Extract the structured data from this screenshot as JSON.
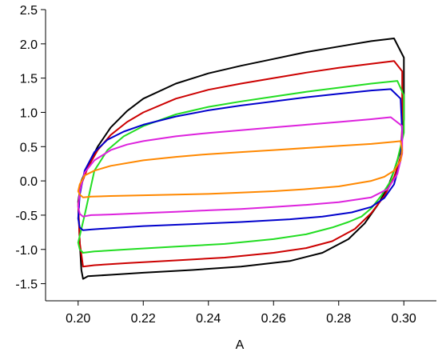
{
  "chart_data": {
    "type": "line",
    "title": "",
    "xlabel": "A",
    "ylabel": "",
    "xlim": [
      0.19,
      0.31
    ],
    "ylim": [
      -1.75,
      2.5
    ],
    "x_ticks": [
      0.2,
      0.22,
      0.24,
      0.26,
      0.28,
      0.3
    ],
    "y_ticks": [
      -1.5,
      -1.0,
      -0.5,
      0.0,
      0.5,
      1.0,
      1.5,
      2.0,
      2.5
    ],
    "x_tick_labels": [
      "0.20",
      "0.22",
      "0.24",
      "0.26",
      "0.28",
      "0.30"
    ],
    "y_tick_labels": [
      "-1.5",
      "-1.0",
      "-0.5",
      "0.0",
      "0.5",
      "1.0",
      "1.5",
      "2.0",
      "2.5"
    ],
    "grid": false,
    "legend": "none",
    "series": [
      {
        "color": "#000000",
        "x": [
          0.2,
          0.201,
          0.203,
          0.206,
          0.21,
          0.215,
          0.22,
          0.23,
          0.24,
          0.25,
          0.26,
          0.27,
          0.28,
          0.29,
          0.297,
          0.3,
          0.3,
          0.299,
          0.297,
          0.295,
          0.292,
          0.288,
          0.283,
          0.275,
          0.265,
          0.25,
          0.235,
          0.22,
          0.21,
          0.203,
          0.2015,
          0.201,
          0.2005,
          0.2
        ],
        "y": [
          -0.3,
          0.0,
          0.22,
          0.5,
          0.78,
          1.02,
          1.2,
          1.42,
          1.57,
          1.68,
          1.78,
          1.88,
          1.96,
          2.04,
          2.08,
          1.8,
          0.9,
          0.45,
          0.15,
          -0.1,
          -0.35,
          -0.62,
          -0.85,
          -1.05,
          -1.17,
          -1.25,
          -1.3,
          -1.34,
          -1.37,
          -1.39,
          -1.43,
          -1.3,
          -0.9,
          -0.3
        ]
      },
      {
        "color": "#cc0000",
        "x": [
          0.2,
          0.201,
          0.203,
          0.206,
          0.21,
          0.215,
          0.22,
          0.23,
          0.24,
          0.25,
          0.26,
          0.27,
          0.28,
          0.29,
          0.297,
          0.2995,
          0.2995,
          0.299,
          0.297,
          0.294,
          0.29,
          0.285,
          0.278,
          0.27,
          0.26,
          0.245,
          0.23,
          0.215,
          0.205,
          0.2015,
          0.2005,
          0.2
        ],
        "y": [
          -0.35,
          -0.05,
          0.2,
          0.45,
          0.67,
          0.86,
          1.0,
          1.2,
          1.33,
          1.42,
          1.5,
          1.58,
          1.65,
          1.71,
          1.75,
          1.6,
          0.8,
          0.35,
          0.05,
          -0.22,
          -0.47,
          -0.7,
          -0.88,
          -0.98,
          -1.05,
          -1.12,
          -1.16,
          -1.2,
          -1.23,
          -1.25,
          -0.9,
          -0.35
        ]
      },
      {
        "color": "#22dd22",
        "x": [
          0.2,
          0.202,
          0.205,
          0.209,
          0.214,
          0.22,
          0.23,
          0.24,
          0.25,
          0.26,
          0.27,
          0.28,
          0.29,
          0.298,
          0.3,
          0.3,
          0.298,
          0.296,
          0.293,
          0.29,
          0.287,
          0.283,
          0.278,
          0.27,
          0.26,
          0.245,
          0.23,
          0.215,
          0.205,
          0.2015,
          0.2005,
          0.2
        ],
        "y": [
          -0.9,
          -0.5,
          0.15,
          0.45,
          0.65,
          0.8,
          0.97,
          1.08,
          1.16,
          1.23,
          1.3,
          1.36,
          1.42,
          1.46,
          1.25,
          0.7,
          0.3,
          0.0,
          -0.22,
          -0.4,
          -0.52,
          -0.6,
          -0.68,
          -0.78,
          -0.85,
          -0.92,
          -0.96,
          -1.0,
          -1.03,
          -1.05,
          -1.0,
          -0.9
        ]
      },
      {
        "color": "#0000cc",
        "x": [
          0.2,
          0.2005,
          0.202,
          0.205,
          0.209,
          0.214,
          0.22,
          0.23,
          0.24,
          0.25,
          0.26,
          0.27,
          0.28,
          0.29,
          0.296,
          0.299,
          0.2995,
          0.299,
          0.297,
          0.294,
          0.29,
          0.284,
          0.275,
          0.265,
          0.25,
          0.235,
          0.22,
          0.21,
          0.204,
          0.2015,
          0.2005,
          0.2
        ],
        "y": [
          -0.55,
          -0.2,
          0.15,
          0.42,
          0.6,
          0.72,
          0.82,
          0.94,
          1.03,
          1.1,
          1.16,
          1.22,
          1.27,
          1.32,
          1.34,
          1.2,
          0.7,
          0.3,
          -0.05,
          -0.25,
          -0.38,
          -0.46,
          -0.52,
          -0.56,
          -0.6,
          -0.63,
          -0.66,
          -0.69,
          -0.71,
          -0.72,
          -0.68,
          -0.55
        ]
      },
      {
        "color": "#dd22dd",
        "x": [
          0.2,
          0.2005,
          0.202,
          0.205,
          0.21,
          0.215,
          0.22,
          0.23,
          0.24,
          0.25,
          0.26,
          0.27,
          0.28,
          0.29,
          0.296,
          0.2995,
          0.2995,
          0.298,
          0.295,
          0.29,
          0.28,
          0.27,
          0.26,
          0.25,
          0.24,
          0.23,
          0.22,
          0.21,
          0.204,
          0.2015,
          0.2005,
          0.2
        ],
        "y": [
          -0.38,
          -0.15,
          0.12,
          0.3,
          0.45,
          0.53,
          0.58,
          0.65,
          0.7,
          0.74,
          0.78,
          0.82,
          0.86,
          0.9,
          0.93,
          0.8,
          0.4,
          0.1,
          -0.12,
          -0.24,
          -0.31,
          -0.35,
          -0.38,
          -0.41,
          -0.43,
          -0.45,
          -0.47,
          -0.49,
          -0.5,
          -0.52,
          -0.48,
          -0.38
        ]
      },
      {
        "color": "#ff8800",
        "x": [
          0.2,
          0.2005,
          0.202,
          0.205,
          0.21,
          0.22,
          0.23,
          0.24,
          0.25,
          0.26,
          0.27,
          0.28,
          0.29,
          0.297,
          0.299,
          0.2995,
          0.299,
          0.297,
          0.294,
          0.29,
          0.28,
          0.27,
          0.26,
          0.25,
          0.24,
          0.23,
          0.22,
          0.21,
          0.204,
          0.2015,
          0.2005,
          0.2
        ],
        "y": [
          -0.15,
          -0.05,
          0.08,
          0.15,
          0.22,
          0.3,
          0.35,
          0.39,
          0.42,
          0.45,
          0.48,
          0.51,
          0.54,
          0.57,
          0.58,
          0.45,
          0.3,
          0.15,
          0.06,
          0.0,
          -0.08,
          -0.12,
          -0.15,
          -0.17,
          -0.19,
          -0.2,
          -0.21,
          -0.22,
          -0.23,
          -0.24,
          -0.2,
          -0.15
        ]
      }
    ]
  }
}
